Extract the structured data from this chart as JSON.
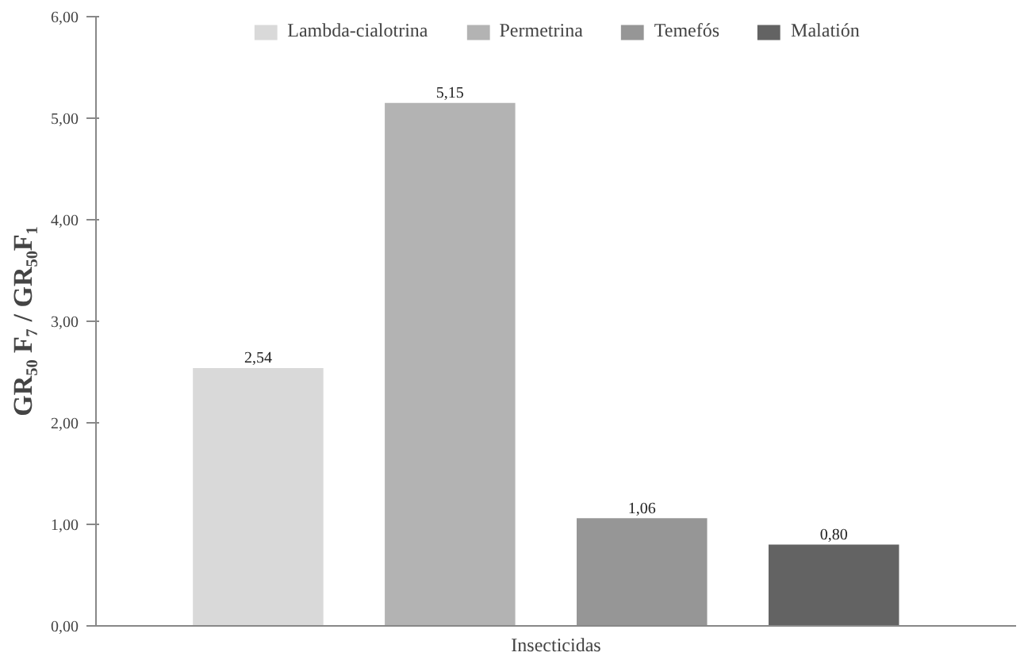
{
  "chart_data": {
    "type": "bar",
    "xlabel": "Insecticidas",
    "ylabel": "GR₅₀ F₇ / GR₅₀F₁",
    "categories": [
      null
    ],
    "series": [
      {
        "name": "Lambda-cialotrina",
        "color": "#d9d9d9",
        "values": [
          2.54
        ],
        "value_labels": [
          "2,54"
        ]
      },
      {
        "name": "Permetrina",
        "color": "#b3b3b3",
        "values": [
          5.15
        ],
        "value_labels": [
          "5,15"
        ]
      },
      {
        "name": "Temefós",
        "color": "#969696",
        "values": [
          1.06
        ],
        "value_labels": [
          "1,06"
        ]
      },
      {
        "name": "Malatión",
        "color": "#636363",
        "values": [
          0.8
        ],
        "value_labels": [
          "0,80"
        ]
      }
    ],
    "ylim": [
      0,
      6
    ],
    "yticks": [
      {
        "value": 0,
        "label": "0,00"
      },
      {
        "value": 1,
        "label": "1,00"
      },
      {
        "value": 2,
        "label": "2,00"
      },
      {
        "value": 3,
        "label": "3,00"
      },
      {
        "value": 4,
        "label": "4,00"
      },
      {
        "value": 5,
        "label": "5,00"
      },
      {
        "value": 6,
        "label": "6,00"
      }
    ],
    "grid": false,
    "legend": "top",
    "tick_labels": "y"
  }
}
